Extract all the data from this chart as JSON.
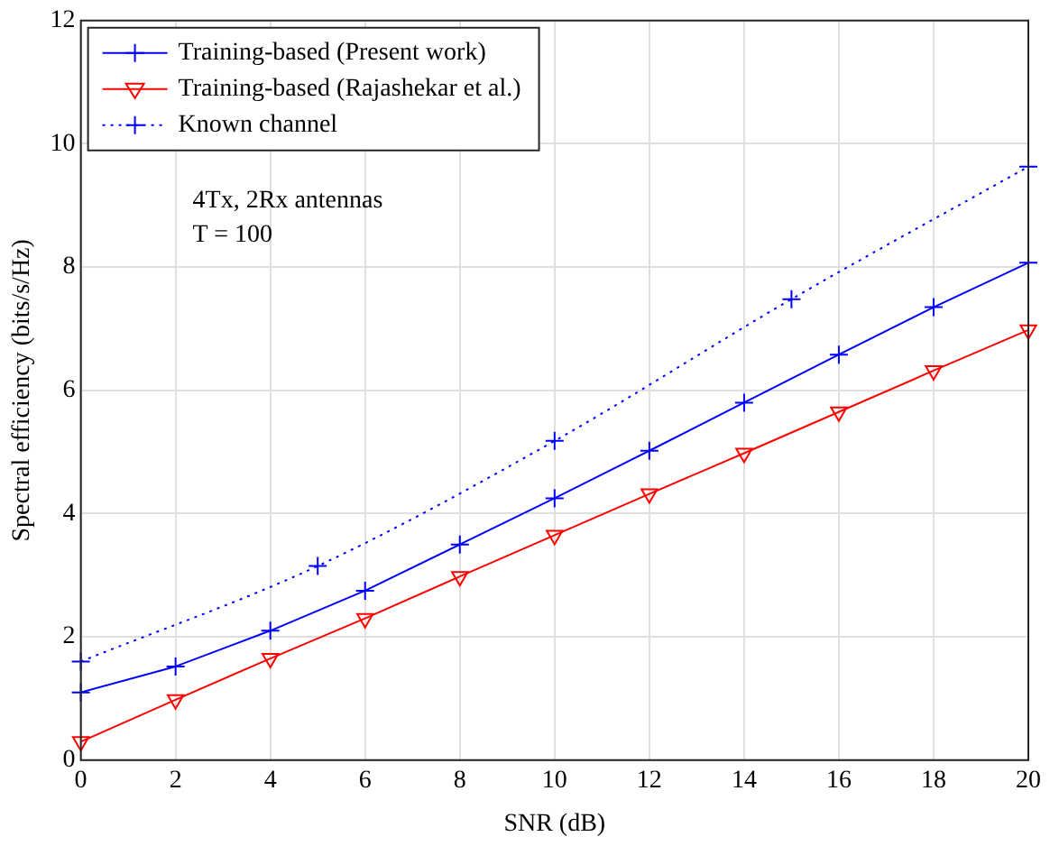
{
  "chart_data": {
    "type": "line",
    "xlabel": "SNR (dB)",
    "ylabel": "Spectral efficiency (bits/s/Hz)",
    "x": [
      0,
      2,
      4,
      6,
      8,
      10,
      12,
      14,
      16,
      18,
      20
    ],
    "xlim": [
      0,
      20
    ],
    "xticks": [
      0,
      2,
      4,
      6,
      8,
      10,
      12,
      14,
      16,
      18,
      20
    ],
    "ylim": [
      0,
      12
    ],
    "yticks": [
      0,
      2,
      4,
      6,
      8,
      10,
      12
    ],
    "grid": true,
    "legend": "top left",
    "annotations": [
      "4Tx, 2Rx antennas",
      "T = 100"
    ],
    "series": [
      {
        "name": "Training-based (Present work)",
        "color": "#0000ff",
        "marker": "cross",
        "line_style": "solid",
        "values": [
          1.1,
          1.52,
          2.1,
          2.75,
          3.5,
          4.25,
          5.02,
          5.8,
          6.58,
          7.35,
          8.07
        ]
      },
      {
        "name": "Training-based (Rajashekar et al.)",
        "color": "#ff0000",
        "marker": "triangle",
        "line_style": "solid",
        "values": [
          0.3,
          0.98,
          1.65,
          2.3,
          2.98,
          3.65,
          4.32,
          4.98,
          5.65,
          6.32,
          6.98
        ]
      },
      {
        "name": "Known channel",
        "color": "#0000ff",
        "marker": "cross",
        "line_style": "dotted",
        "x": [
          0,
          5,
          10,
          15,
          20
        ],
        "values": [
          1.6,
          3.15,
          5.18,
          7.48,
          9.63
        ]
      }
    ]
  }
}
